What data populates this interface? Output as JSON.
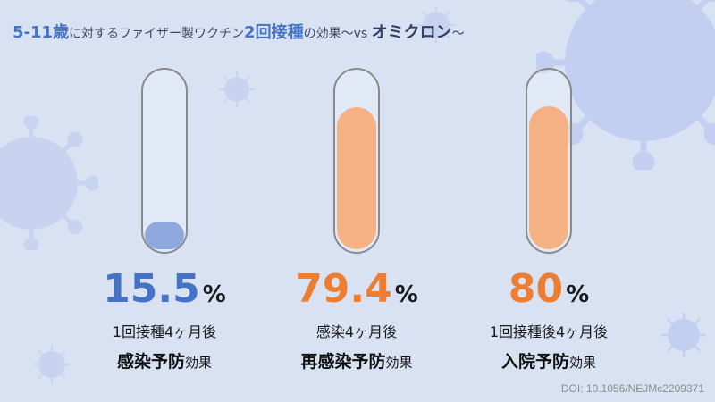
{
  "title": {
    "age": "5-11歳",
    "part1": "に対するファイザー製ワクチン",
    "dose": "2回接種",
    "part2": "の効果〜vs ",
    "variant": "オミクロン",
    "tail": "〜"
  },
  "colors": {
    "blue": "#4472c4",
    "orange": "#ed7d31",
    "fill_blue": "#8fa9de",
    "fill_orange": "#f4b183"
  },
  "items": [
    {
      "value": "15.5",
      "unit": "%",
      "level_percent": 15.5,
      "line1": "1回接種4ヶ月後",
      "bold": "感染予防",
      "suffix": "効果",
      "color": "#4472c4",
      "fill": "#8fa9de"
    },
    {
      "value": "79.4",
      "unit": "%",
      "level_percent": 79.4,
      "line1": "感染4ヶ月後",
      "bold": "再感染予防",
      "suffix": "効果",
      "color": "#ed7d31",
      "fill": "#f4b183"
    },
    {
      "value": "80",
      "unit": "%",
      "level_percent": 80,
      "line1": "1回接種後4ヶ月後",
      "bold": "入院予防",
      "suffix": "効果",
      "color": "#ed7d31",
      "fill": "#f4b183"
    }
  ],
  "doi": "DOI: 10.1056/NEJMc2209371"
}
